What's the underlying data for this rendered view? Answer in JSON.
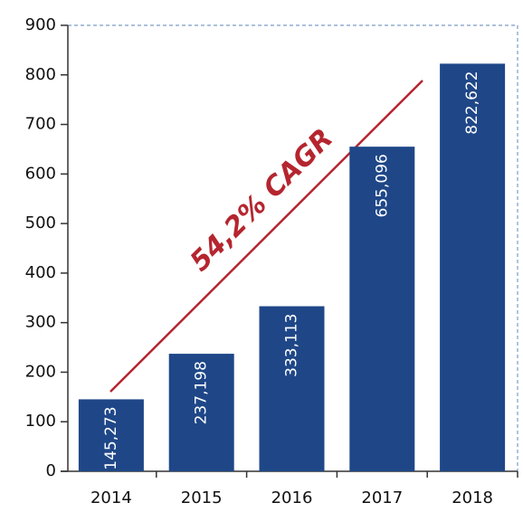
{
  "chart_data": {
    "type": "bar",
    "categories": [
      "2014",
      "2015",
      "2016",
      "2017",
      "2018"
    ],
    "values": [
      145.273,
      237.198,
      333.113,
      655.096,
      822.622
    ],
    "value_labels": [
      "145,273",
      "237,198",
      "333,113",
      "655,096",
      "822,622"
    ],
    "color": "#1f4788",
    "ylim": [
      0,
      900
    ],
    "yticks": [
      0,
      100,
      200,
      300,
      400,
      500,
      600,
      700,
      800,
      900
    ],
    "annotation": "54,2% CAGR",
    "annotation_color": "#b5252f"
  }
}
